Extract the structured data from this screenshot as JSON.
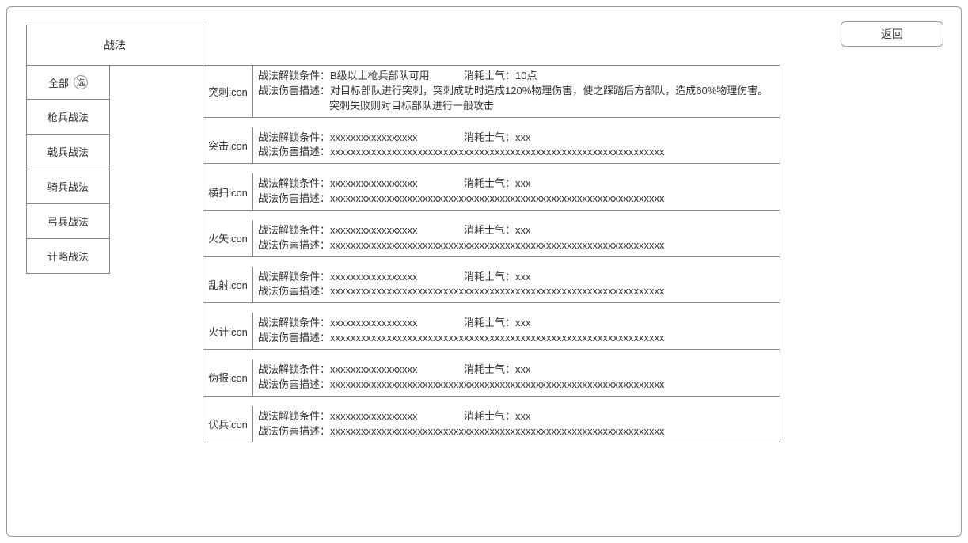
{
  "header": {
    "back_label": "返回"
  },
  "title": "战法",
  "categories": [
    {
      "label": "全部",
      "selected_badge": "选"
    },
    {
      "label": "枪兵战法"
    },
    {
      "label": "戟兵战法"
    },
    {
      "label": "骑兵战法"
    },
    {
      "label": "弓兵战法"
    },
    {
      "label": "计略战法"
    }
  ],
  "labels": {
    "unlock_prefix": "战法解锁条件：",
    "cost_prefix": "消耗士气：",
    "desc_prefix": "战法伤害描述："
  },
  "tactics": [
    {
      "name": "突刺icon",
      "unlock": "B级以上枪兵部队可用",
      "cost": "10点",
      "desc_line1": "对目标部队进行突刺，突刺成功时造成120%物理伤害，使之踩踏后方部队，造成60%物理伤害。",
      "desc_line2": "突刺失败则对目标部队进行一般攻击"
    },
    {
      "name": "突击icon",
      "unlock": "xxxxxxxxxxxxxxxxx",
      "cost": "xxx",
      "desc_line1": "xxxxxxxxxxxxxxxxxxxxxxxxxxxxxxxxxxxxxxxxxxxxxxxxxxxxxxxxxxxxxxxxx",
      "desc_line2": ""
    },
    {
      "name": "横扫icon",
      "unlock": "xxxxxxxxxxxxxxxxx",
      "cost": "xxx",
      "desc_line1": "xxxxxxxxxxxxxxxxxxxxxxxxxxxxxxxxxxxxxxxxxxxxxxxxxxxxxxxxxxxxxxxxx",
      "desc_line2": ""
    },
    {
      "name": "火矢icon",
      "unlock": "xxxxxxxxxxxxxxxxx",
      "cost": "xxx",
      "desc_line1": "xxxxxxxxxxxxxxxxxxxxxxxxxxxxxxxxxxxxxxxxxxxxxxxxxxxxxxxxxxxxxxxxx",
      "desc_line2": ""
    },
    {
      "name": "乱射icon",
      "unlock": "xxxxxxxxxxxxxxxxx",
      "cost": "xxx",
      "desc_line1": "xxxxxxxxxxxxxxxxxxxxxxxxxxxxxxxxxxxxxxxxxxxxxxxxxxxxxxxxxxxxxxxxx",
      "desc_line2": ""
    },
    {
      "name": "火计icon",
      "unlock": "xxxxxxxxxxxxxxxxx",
      "cost": "xxx",
      "desc_line1": "xxxxxxxxxxxxxxxxxxxxxxxxxxxxxxxxxxxxxxxxxxxxxxxxxxxxxxxxxxxxxxxxx",
      "desc_line2": ""
    },
    {
      "name": "伪报icon",
      "unlock": "xxxxxxxxxxxxxxxxx",
      "cost": "xxx",
      "desc_line1": "xxxxxxxxxxxxxxxxxxxxxxxxxxxxxxxxxxxxxxxxxxxxxxxxxxxxxxxxxxxxxxxxx",
      "desc_line2": ""
    },
    {
      "name": "伏兵icon",
      "unlock": "xxxxxxxxxxxxxxxxx",
      "cost": "xxx",
      "desc_line1": "xxxxxxxxxxxxxxxxxxxxxxxxxxxxxxxxxxxxxxxxxxxxxxxxxxxxxxxxxxxxxxxxx",
      "desc_line2": ""
    }
  ],
  "colors": {
    "border": "#888888",
    "text": "#333333",
    "background": "#ffffff"
  }
}
